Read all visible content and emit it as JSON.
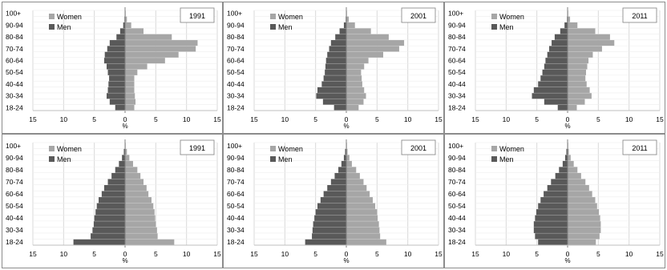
{
  "chart_data": [
    {
      "type": "bar",
      "orientation": "horizontal",
      "stacked_diverging": true,
      "year": "1991",
      "xlabel": "%",
      "xlim": [
        -15,
        15
      ],
      "xticks": [
        "15",
        "10",
        "5",
        "0",
        "5",
        "10",
        "15"
      ],
      "categories": [
        "18-24",
        "25-29",
        "30-34",
        "35-39",
        "40-44",
        "45-49",
        "50-54",
        "55-59",
        "60-64",
        "65-69",
        "70-74",
        "75-79",
        "80-84",
        "85-89",
        "90-94",
        "95-99",
        "100+"
      ],
      "ytick_labels": [
        "18-24",
        "30-34",
        "40-44",
        "50-54",
        "60-64",
        "70-74",
        "80-84",
        "90-94",
        "100+"
      ],
      "series": [
        {
          "name": "Women",
          "color": "#a6a6a6",
          "values": [
            1.5,
            1.7,
            1.6,
            1.5,
            1.5,
            1.5,
            2.0,
            3.6,
            6.5,
            8.7,
            11.5,
            11.8,
            7.6,
            3.0,
            1.0,
            0.3,
            0.1
          ]
        },
        {
          "name": "Men",
          "color": "#595959",
          "values": [
            1.6,
            2.5,
            3.0,
            2.8,
            2.7,
            2.6,
            2.8,
            3.0,
            3.4,
            3.3,
            2.9,
            2.5,
            1.4,
            0.8,
            0.3,
            0.1,
            0.0
          ]
        }
      ],
      "legend": "top-left"
    },
    {
      "type": "bar",
      "orientation": "horizontal",
      "stacked_diverging": true,
      "year": "2001",
      "xlabel": "%",
      "xlim": [
        -15,
        15
      ],
      "xticks": [
        "15",
        "10",
        "5",
        "0",
        "5",
        "10",
        "15"
      ],
      "categories": [
        "18-24",
        "25-29",
        "30-34",
        "35-39",
        "40-44",
        "45-49",
        "50-54",
        "55-59",
        "60-64",
        "65-69",
        "70-74",
        "75-79",
        "80-84",
        "85-89",
        "90-94",
        "95-99",
        "100+"
      ],
      "ytick_labels": [
        "18-24",
        "30-34",
        "40-44",
        "50-54",
        "60-64",
        "70-74",
        "80-84",
        "90-94",
        "100+"
      ],
      "series": [
        {
          "name": "Women",
          "color": "#a6a6a6",
          "values": [
            2.0,
            2.8,
            3.2,
            2.9,
            2.6,
            2.5,
            2.4,
            2.9,
            3.6,
            6.0,
            8.6,
            9.4,
            6.9,
            4.0,
            1.4,
            0.4,
            0.1
          ]
        },
        {
          "name": "Men",
          "color": "#595959",
          "values": [
            2.0,
            3.8,
            4.9,
            4.7,
            4.0,
            3.7,
            3.5,
            3.4,
            3.3,
            3.1,
            2.8,
            2.5,
            1.8,
            1.1,
            0.4,
            0.1,
            0.0
          ]
        }
      ],
      "legend": "top-left"
    },
    {
      "type": "bar",
      "orientation": "horizontal",
      "stacked_diverging": true,
      "year": "2011",
      "xlabel": "%",
      "xlim": [
        -15,
        15
      ],
      "xticks": [
        "15",
        "10",
        "5",
        "0",
        "5",
        "10",
        "15"
      ],
      "categories": [
        "18-24",
        "25-29",
        "30-34",
        "35-39",
        "40-44",
        "45-49",
        "50-54",
        "55-59",
        "60-64",
        "65-69",
        "70-74",
        "75-79",
        "80-84",
        "85-89",
        "90-94",
        "95-99",
        "100+"
      ],
      "ytick_labels": [
        "18-24",
        "30-34",
        "40-44",
        "50-54",
        "60-64",
        "70-74",
        "80-84",
        "90-94",
        "100+"
      ],
      "series": [
        {
          "name": "Women",
          "color": "#a6a6a6",
          "values": [
            1.5,
            2.8,
            3.9,
            3.6,
            3.1,
            2.9,
            3.0,
            3.2,
            3.4,
            4.1,
            5.6,
            7.6,
            6.9,
            4.5,
            1.6,
            0.4,
            0.1
          ]
        },
        {
          "name": "Men",
          "color": "#595959",
          "values": [
            1.6,
            3.8,
            5.8,
            5.5,
            4.8,
            4.4,
            4.1,
            3.8,
            3.6,
            3.3,
            3.0,
            2.6,
            2.1,
            1.2,
            0.5,
            0.1,
            0.0
          ]
        }
      ],
      "legend": "top-left"
    },
    {
      "type": "bar",
      "orientation": "horizontal",
      "stacked_diverging": true,
      "year": "1991",
      "xlabel": "%",
      "xlim": [
        -15,
        15
      ],
      "xticks": [
        "15",
        "10",
        "5",
        "0",
        "5",
        "10",
        "15"
      ],
      "categories": [
        "18-24",
        "25-29",
        "30-34",
        "35-39",
        "40-44",
        "45-49",
        "50-54",
        "55-59",
        "60-64",
        "65-69",
        "70-74",
        "75-79",
        "80-84",
        "85-89",
        "90-94",
        "95-99",
        "100+"
      ],
      "ytick_labels": [
        "18-24",
        "30-34",
        "40-44",
        "50-54",
        "60-64",
        "70-74",
        "80-84",
        "90-94",
        "100+"
      ],
      "series": [
        {
          "name": "Women",
          "color": "#a6a6a6",
          "values": [
            8.0,
            5.3,
            5.2,
            5.0,
            4.9,
            4.8,
            4.6,
            4.3,
            3.8,
            3.5,
            3.0,
            2.5,
            2.0,
            1.3,
            0.7,
            0.3,
            0.1
          ]
        },
        {
          "name": "Men",
          "color": "#595959",
          "values": [
            8.4,
            5.6,
            5.3,
            5.1,
            5.0,
            4.8,
            4.6,
            4.3,
            3.8,
            3.4,
            2.8,
            2.2,
            1.6,
            1.0,
            0.5,
            0.2,
            0.0
          ]
        }
      ],
      "legend": "top-left"
    },
    {
      "type": "bar",
      "orientation": "horizontal",
      "stacked_diverging": true,
      "year": "2001",
      "xlabel": "%",
      "xlim": [
        -15,
        15
      ],
      "xticks": [
        "15",
        "10",
        "5",
        "0",
        "5",
        "10",
        "15"
      ],
      "categories": [
        "18-24",
        "25-29",
        "30-34",
        "35-39",
        "40-44",
        "45-49",
        "50-54",
        "55-59",
        "60-64",
        "65-69",
        "70-74",
        "75-79",
        "80-84",
        "85-89",
        "90-94",
        "95-99",
        "100+"
      ],
      "ytick_labels": [
        "18-24",
        "30-34",
        "40-44",
        "50-54",
        "60-64",
        "70-74",
        "80-84",
        "90-94",
        "100+"
      ],
      "series": [
        {
          "name": "Women",
          "color": "#a6a6a6",
          "values": [
            6.5,
            5.5,
            5.4,
            5.3,
            5.1,
            5.0,
            4.7,
            4.3,
            3.8,
            3.3,
            2.8,
            2.2,
            1.6,
            0.9,
            0.5,
            0.2,
            0.1
          ]
        },
        {
          "name": "Men",
          "color": "#595959",
          "values": [
            6.7,
            5.6,
            5.5,
            5.4,
            5.2,
            5.0,
            4.7,
            4.2,
            3.7,
            3.1,
            2.5,
            1.9,
            1.3,
            0.8,
            0.4,
            0.2,
            0.0
          ]
        }
      ],
      "legend": "top-left"
    },
    {
      "type": "bar",
      "orientation": "horizontal",
      "stacked_diverging": true,
      "year": "2011",
      "xlabel": "%",
      "xlim": [
        -15,
        15
      ],
      "xticks": [
        "15",
        "10",
        "5",
        "0",
        "5",
        "10",
        "15"
      ],
      "categories": [
        "18-24",
        "25-29",
        "30-34",
        "35-39",
        "40-44",
        "45-49",
        "50-54",
        "55-59",
        "60-64",
        "65-69",
        "70-74",
        "75-79",
        "80-84",
        "85-89",
        "90-94",
        "95-99",
        "100+"
      ],
      "ytick_labels": [
        "18-24",
        "30-34",
        "40-44",
        "50-54",
        "60-64",
        "70-74",
        "80-84",
        "90-94",
        "100+"
      ],
      "series": [
        {
          "name": "Women",
          "color": "#a6a6a6",
          "values": [
            4.6,
            5.2,
            5.4,
            5.4,
            5.3,
            5.1,
            4.8,
            4.5,
            4.0,
            3.5,
            2.9,
            2.2,
            1.6,
            1.0,
            0.5,
            0.2,
            0.1
          ]
        },
        {
          "name": "Men",
          "color": "#595959",
          "values": [
            4.8,
            5.3,
            5.5,
            5.5,
            5.3,
            5.1,
            4.8,
            4.4,
            3.9,
            3.3,
            2.7,
            2.0,
            1.4,
            0.8,
            0.4,
            0.2,
            0.0
          ]
        }
      ],
      "legend": "top-left"
    }
  ]
}
